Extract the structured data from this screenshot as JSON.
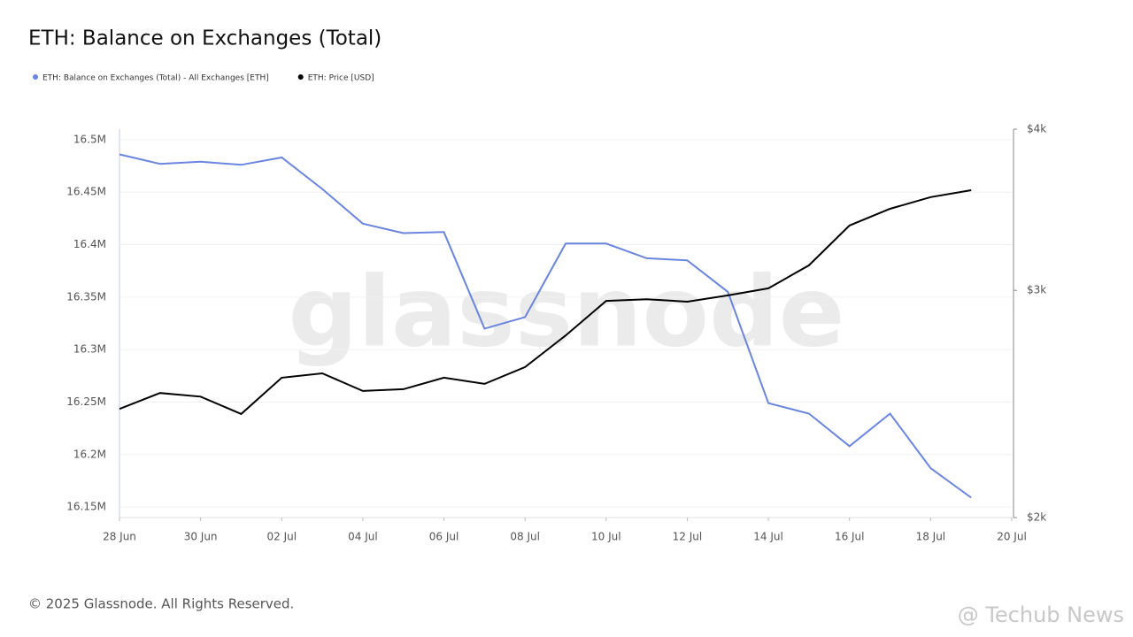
{
  "chart_data": {
    "type": "line",
    "title": "ETH: Balance on Exchanges (Total)",
    "footer": "© 2025 Glassnode. All Rights Reserved.",
    "watermark": "glassnode",
    "corner_watermark": "@ Techub News",
    "categories": [
      "28 Jun",
      null,
      "30 Jun",
      null,
      "02 Jul",
      null,
      "04 Jul",
      null,
      "06 Jul",
      null,
      "08 Jul",
      null,
      "10 Jul",
      null,
      "12 Jul",
      null,
      "14 Jul",
      null,
      "16 Jul",
      null,
      "18 Jul",
      null,
      "20 Jul"
    ],
    "series": [
      {
        "name": "ETH: Balance on Exchanges (Total) - All Exchanges [ETH]",
        "color": "#6a85dd",
        "values": [
          16.486,
          16.477,
          16.479,
          16.476,
          16.483,
          16.453,
          16.42,
          16.411,
          16.412,
          16.32,
          16.331,
          16.401,
          16.401,
          16.387,
          16.385,
          16.355,
          16.249,
          16.239,
          16.208,
          16.239,
          16.187,
          16.159,
          null
        ]
      },
      {
        "name": "ETH: Price [USD]",
        "color": "#000000",
        "axis": "y2",
        "values": [
          2428,
          2498,
          2482,
          2406,
          2567,
          2587,
          2507,
          2515,
          2567,
          2539,
          2616,
          2768,
          2944,
          2953,
          2940,
          2973,
          3011,
          3137,
          3368,
          3470,
          3543,
          3587,
          null
        ]
      }
    ],
    "ylim": [
      16.14,
      16.51
    ],
    "yticks": [
      {
        "value": 16.15,
        "label": "16.15M"
      },
      {
        "value": 16.2,
        "label": "16.2M"
      },
      {
        "value": 16.25,
        "label": "16.25M"
      },
      {
        "value": 16.3,
        "label": "16.3M"
      },
      {
        "value": 16.35,
        "label": "16.35M"
      },
      {
        "value": 16.4,
        "label": "16.4M"
      },
      {
        "value": 16.45,
        "label": "16.45M"
      },
      {
        "value": 16.5,
        "label": "16.5M"
      }
    ],
    "y2lim": [
      2000,
      4000
    ],
    "y2ticks": [
      {
        "value": 2000,
        "label": "$2k"
      },
      {
        "value": 3000,
        "label": "$3k"
      },
      {
        "value": 4000,
        "label": "$4k"
      }
    ],
    "y2_log": true,
    "grid": true
  }
}
